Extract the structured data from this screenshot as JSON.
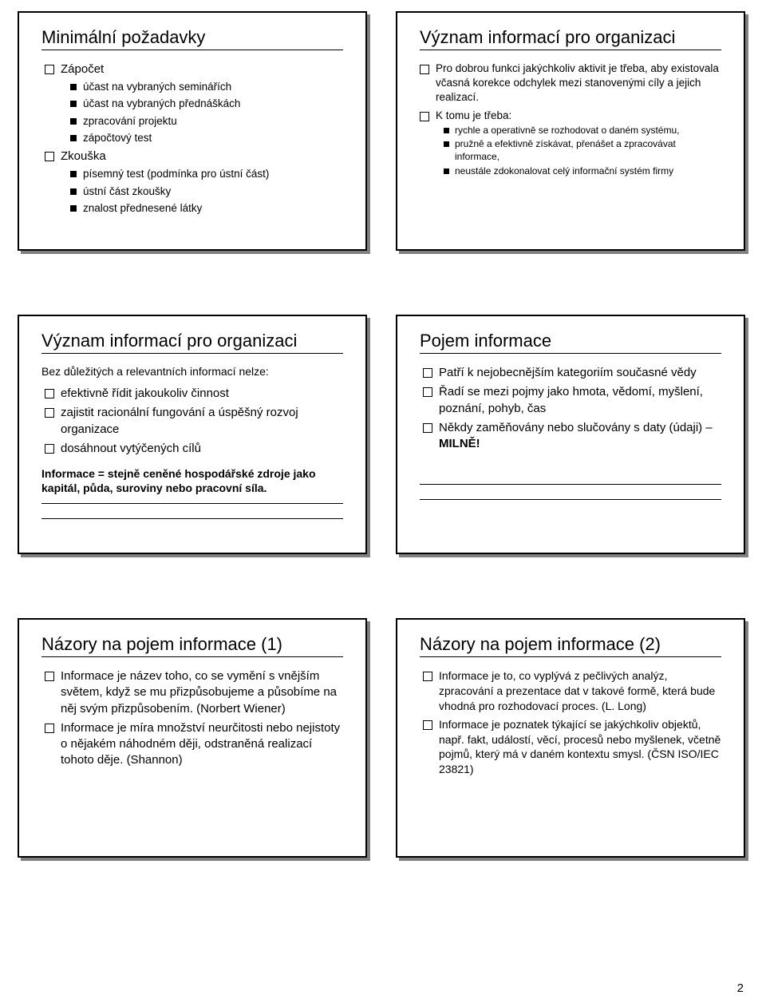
{
  "page_number": "2",
  "colors": {
    "background": "#ffffff",
    "text": "#000000",
    "border": "#000000",
    "shadow": "#808080"
  },
  "slides": [
    {
      "title": "Minimální požadavky",
      "items": [
        {
          "text": "Zápočet",
          "children": [
            {
              "text": "účast na vybraných seminářích"
            },
            {
              "text": "účast na vybraných přednáškách"
            },
            {
              "text": "zpracování projektu"
            },
            {
              "text": "zápočtový test"
            }
          ]
        },
        {
          "text": "Zkouška",
          "children": [
            {
              "text": "písemný test (podmínka pro ústní část)"
            },
            {
              "text": "ústní část zkoušky"
            },
            {
              "text": "znalost přednesené látky"
            }
          ]
        }
      ]
    },
    {
      "title": "Význam informací pro organizaci",
      "items": [
        {
          "text": "Pro dobrou funkci jakýchkoliv aktivit je třeba, aby existovala včasná korekce odchylek mezi stanovenými cíly a jejich realizací."
        },
        {
          "text": "K tomu je třeba:",
          "children": [
            {
              "text": "rychle a operativně se rozhodovat o daném systému,"
            },
            {
              "text": "pružně a efektivně získávat, přenášet a zpracovávat informace,"
            },
            {
              "text": "neustále zdokonalovat celý informační systém firmy"
            }
          ]
        }
      ]
    },
    {
      "title": "Význam informací pro organizaci",
      "intro": "Bez důležitých a relevantních informací nelze:",
      "items": [
        {
          "text": "efektivně řídit jakoukoliv činnost"
        },
        {
          "text": "zajistit racionální fungování a úspěšný rozvoj organizace"
        },
        {
          "text": "dosáhnout vytýčených cílů"
        }
      ],
      "note": "Informace = stejně ceněné hospodářské zdroje jako kapitál, půda, suroviny nebo pracovní síla."
    },
    {
      "title": "Pojem informace",
      "items": [
        {
          "text": "Patří k nejobecnějším kategoriím současné vědy"
        },
        {
          "text": "Řadí se mezi pojmy jako hmota, vědomí, myšlení, poznání, pohyb, čas"
        },
        {
          "text_html": "Někdy zaměňovány nebo slučovány s daty (údaji) – <b>MILNĚ!</b>"
        }
      ]
    },
    {
      "title": "Názory na pojem informace (1)",
      "items": [
        {
          "text": "Informace je název toho, co se vymění s vnějším světem, když se mu přizpůsobujeme a působíme na něj svým přizpůsobením. (Norbert Wiener)"
        },
        {
          "text": "Informace je míra množství neurčitosti nebo nejistoty o nějakém náhodném ději, odstraněná realizací tohoto děje. (Shannon)"
        }
      ]
    },
    {
      "title": "Názory na pojem informace (2)",
      "items": [
        {
          "text": "Informace je to, co vyplývá z pečlivých analýz, zpracování a prezentace dat v takové formě, která bude vhodná pro rozhodovací proces. (L. Long)"
        },
        {
          "text": "Informace je poznatek týkající se jakýchkoliv objektů, např. fakt, událostí, věcí, procesů nebo myšlenek, včetně pojmů, který má v daném kontextu smysl. (ČSN ISO/IEC 23821)"
        }
      ]
    }
  ]
}
